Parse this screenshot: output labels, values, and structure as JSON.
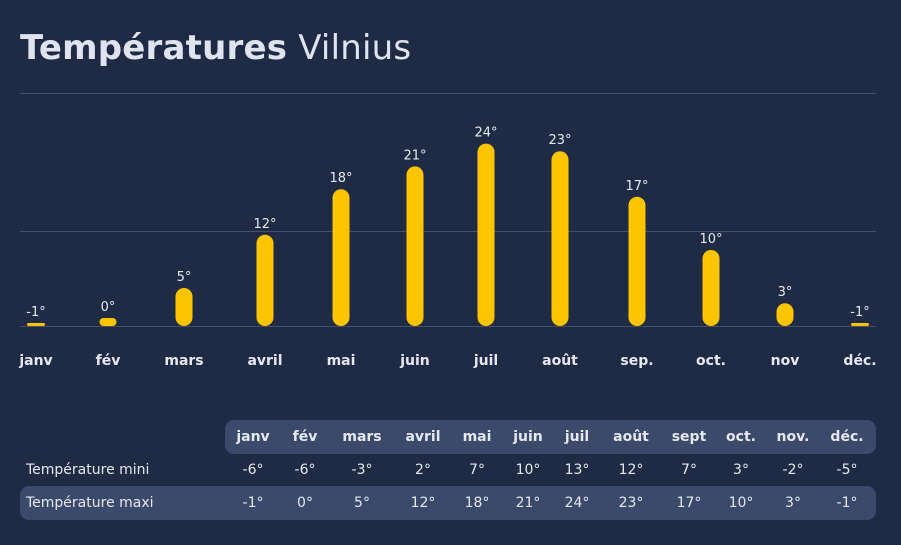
{
  "title": {
    "bold": "Températures",
    "city": "Vilnius"
  },
  "colors": {
    "background": "#1f2a45",
    "bar": "#fdc500",
    "grid": "#46506a",
    "table_highlight": "#3b4a6b"
  },
  "chart_data": {
    "type": "bar",
    "categories": [
      "janv",
      "fév",
      "mars",
      "avril",
      "mai",
      "juin",
      "juil",
      "août",
      "sep.",
      "oct.",
      "nov",
      "déc."
    ],
    "values": [
      -1,
      0,
      5,
      12,
      18,
      21,
      24,
      23,
      17,
      10,
      3,
      -1
    ],
    "value_labels": [
      "-1°",
      "0°",
      "5°",
      "12°",
      "18°",
      "21°",
      "24°",
      "23°",
      "17°",
      "10°",
      "3°",
      "-1°"
    ],
    "ylim": [
      0,
      30
    ],
    "grid": true
  },
  "table": {
    "headers": [
      "janv",
      "fév",
      "mars",
      "avril",
      "mai",
      "juin",
      "juil",
      "août",
      "sept",
      "oct.",
      "nov.",
      "déc."
    ],
    "rows": [
      {
        "label": "Température mini",
        "values": [
          "-6°",
          "-6°",
          "-3°",
          "2°",
          "7°",
          "10°",
          "13°",
          "12°",
          "7°",
          "3°",
          "-2°",
          "-5°"
        ]
      },
      {
        "label": "Température maxi",
        "values": [
          "-1°",
          "0°",
          "5°",
          "12°",
          "18°",
          "21°",
          "24°",
          "23°",
          "17°",
          "10°",
          "3°",
          "-1°"
        ]
      }
    ]
  }
}
